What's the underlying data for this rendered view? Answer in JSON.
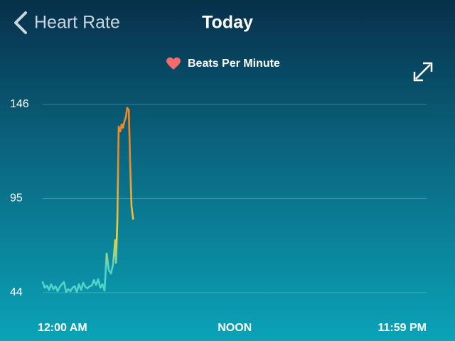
{
  "header": {
    "back_label": "Heart Rate",
    "title": "Today"
  },
  "chart_data": {
    "type": "line",
    "legend": "Beats Per Minute",
    "x": [
      0,
      8,
      16,
      24,
      32,
      40,
      48,
      56,
      64,
      72,
      80,
      88,
      96,
      104,
      112,
      120,
      128,
      136,
      144,
      152,
      160,
      168,
      176,
      184,
      192,
      200,
      208,
      216,
      224,
      232,
      240,
      248,
      256,
      264,
      272,
      275,
      280,
      285,
      291,
      296,
      301,
      307,
      312,
      317,
      323,
      328,
      333,
      339
    ],
    "series": [
      {
        "name": "Beats Per Minute",
        "colors": [
          "#52d3c8",
          "#f3d33a",
          "#f08a24"
        ],
        "values": [
          49.8,
          46.7,
          47.8,
          45.5,
          48.6,
          45.9,
          47.5,
          44.8,
          47.1,
          48.6,
          49.8,
          44.4,
          45.9,
          44.8,
          46.7,
          47.5,
          44.4,
          48.6,
          45.5,
          49.4,
          47.1,
          46.3,
          47.5,
          47.8,
          50.9,
          48.2,
          51.3,
          46.7,
          48.6,
          45.2,
          65.2,
          56.3,
          54.4,
          59.4,
          72.5,
          60.2,
          83.3,
          134,
          131.4,
          135.2,
          133.3,
          137.1,
          139.1,
          144.1,
          142.9,
          114,
          91,
          84
        ]
      }
    ],
    "xlim": [
      0,
      1439
    ],
    "xticks": [
      {
        "value": 0,
        "label": "12:00 AM"
      },
      {
        "value": 720,
        "label": "NOON"
      },
      {
        "value": 1439,
        "label": "11:59 PM"
      }
    ],
    "ylim": [
      44,
      146
    ],
    "yticks": [
      44,
      95,
      146
    ],
    "grid": true
  }
}
